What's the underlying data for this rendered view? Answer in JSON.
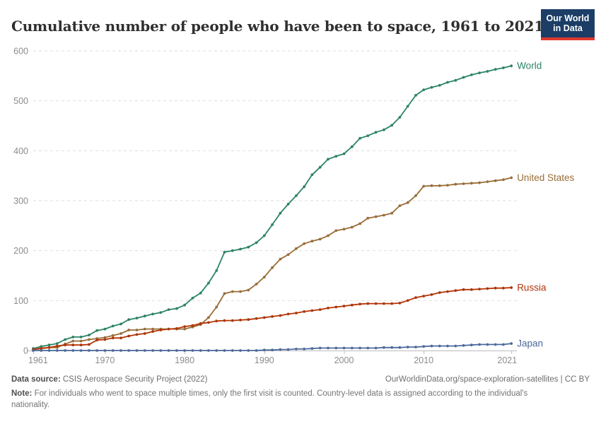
{
  "header": {
    "title": "Cumulative number of people who have been to space, 1961 to 2021",
    "logo": {
      "line1": "Our World",
      "line2": "in Data",
      "bg_color": "#1C3D66",
      "bar_color": "#E0392E"
    }
  },
  "chart_data": {
    "type": "line",
    "title": "Cumulative number of people who have been to space, 1961 to 2021",
    "xlabel": "",
    "ylabel": "",
    "xlim": [
      1961,
      2021
    ],
    "ylim": [
      0,
      600
    ],
    "xticks": [
      1961,
      1970,
      1980,
      1990,
      2000,
      2010,
      2021
    ],
    "yticks": [
      0,
      100,
      200,
      300,
      400,
      500,
      600
    ],
    "grid": "horizontal-dashed",
    "legend_position": "end-of-line-labels",
    "years": [
      1961,
      1962,
      1963,
      1964,
      1965,
      1966,
      1967,
      1968,
      1969,
      1970,
      1971,
      1972,
      1973,
      1974,
      1975,
      1976,
      1977,
      1978,
      1979,
      1980,
      1981,
      1982,
      1983,
      1984,
      1985,
      1986,
      1987,
      1988,
      1989,
      1990,
      1991,
      1992,
      1993,
      1994,
      1995,
      1996,
      1997,
      1998,
      1999,
      2000,
      2001,
      2002,
      2003,
      2004,
      2005,
      2006,
      2007,
      2008,
      2009,
      2010,
      2011,
      2012,
      2013,
      2014,
      2015,
      2016,
      2017,
      2018,
      2019,
      2020,
      2021
    ],
    "series": [
      {
        "name": "World",
        "color": "#2C8465",
        "values": [
          4,
          8,
          11,
          14,
          22,
          27,
          27,
          31,
          40,
          43,
          49,
          53,
          62,
          65,
          69,
          73,
          76,
          82,
          84,
          91,
          105,
          115,
          135,
          160,
          197,
          200,
          203,
          207,
          216,
          230,
          252,
          275,
          293,
          310,
          328,
          352,
          367,
          383,
          389,
          394,
          408,
          425,
          430,
          437,
          442,
          451,
          467,
          489,
          511,
          522,
          527,
          531,
          537,
          541,
          547,
          552,
          556,
          559,
          563,
          566,
          570
        ]
      },
      {
        "name": "United States",
        "color": "#996D39",
        "values": [
          2,
          5,
          6,
          6,
          13,
          19,
          19,
          22,
          24,
          26,
          30,
          34,
          41,
          41,
          43,
          43,
          43,
          43,
          43,
          43,
          47,
          52,
          66,
          87,
          114,
          118,
          118,
          121,
          133,
          147,
          166,
          183,
          192,
          204,
          214,
          219,
          223,
          230,
          240,
          243,
          247,
          254,
          265,
          268,
          271,
          275,
          290,
          296,
          310,
          329,
          330,
          330,
          331,
          333,
          334,
          335,
          336,
          338,
          340,
          342,
          346
        ]
      },
      {
        "name": "Russia",
        "color": "#B13507",
        "values": [
          2,
          4,
          6,
          9,
          11,
          11,
          11,
          12,
          21,
          22,
          25,
          25,
          29,
          32,
          34,
          38,
          41,
          43,
          44,
          48,
          50,
          54,
          56,
          59,
          60,
          60,
          61,
          62,
          64,
          66,
          68,
          70,
          73,
          75,
          78,
          80,
          82,
          85,
          87,
          89,
          91,
          93,
          94,
          94,
          94,
          94,
          95,
          100,
          106,
          109,
          112,
          116,
          118,
          120,
          122,
          122,
          123,
          124,
          125,
          125,
          126
        ]
      },
      {
        "name": "Japan",
        "color": "#4C6A9C",
        "values": [
          0,
          0,
          0,
          0,
          0,
          0,
          0,
          0,
          0,
          0,
          0,
          0,
          0,
          0,
          0,
          0,
          0,
          0,
          0,
          0,
          0,
          0,
          0,
          0,
          0,
          0,
          0,
          0,
          0,
          1,
          1,
          2,
          2,
          3,
          3,
          4,
          5,
          5,
          5,
          5,
          5,
          5,
          5,
          5,
          6,
          6,
          6,
          7,
          7,
          8,
          9,
          9,
          9,
          9,
          10,
          11,
          12,
          12,
          12,
          12,
          14
        ]
      }
    ]
  },
  "footer": {
    "source_label": "Data source:",
    "source_text": "CSIS Aerospace Security Project (2022)",
    "attribution": "OurWorldinData.org/space-exploration-satellites | CC BY",
    "note_label": "Note:",
    "note_text": "For individuals who went to space multiple times, only the first visit is counted. Country-level data is assigned according to the individual's nationality."
  }
}
